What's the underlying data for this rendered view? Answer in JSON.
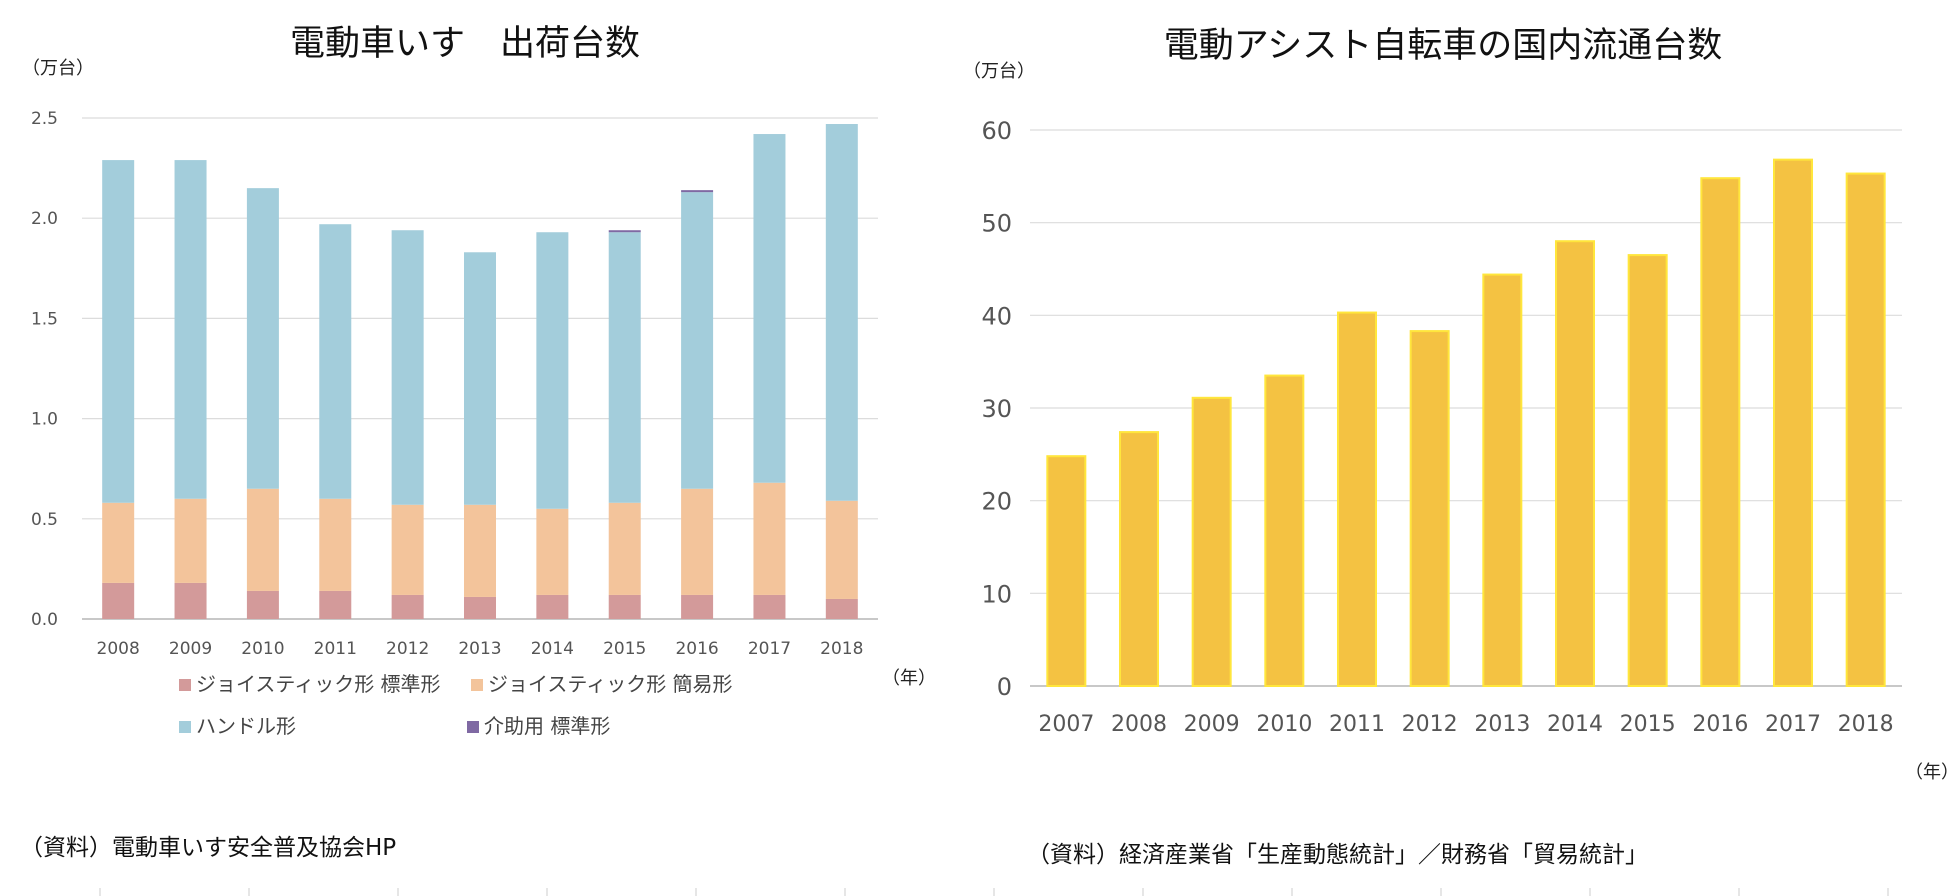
{
  "chart_data": [
    {
      "type": "bar",
      "stacked": true,
      "title": "電動車いす　出荷台数",
      "unit_label": "（万台）",
      "x_unit_label": "（年）",
      "categories": [
        "2008",
        "2009",
        "2010",
        "2011",
        "2012",
        "2013",
        "2014",
        "2015",
        "2016",
        "2017",
        "2018"
      ],
      "y_ticks": [
        "0.0",
        "0.5",
        "1.0",
        "1.5",
        "2.0",
        "2.5"
      ],
      "ylim": [
        0,
        2.5
      ],
      "grid": true,
      "legend_position": "bottom",
      "series": [
        {
          "name": "ジョイスティック形 標準形",
          "color": "#d39a9a",
          "values": [
            0.18,
            0.18,
            0.14,
            0.14,
            0.12,
            0.11,
            0.12,
            0.12,
            0.12,
            0.12,
            0.1
          ]
        },
        {
          "name": "ジョイスティック形 簡易形",
          "color": "#f3c49b",
          "values": [
            0.4,
            0.42,
            0.51,
            0.46,
            0.45,
            0.46,
            0.43,
            0.46,
            0.53,
            0.56,
            0.49
          ]
        },
        {
          "name": "ハンドル形",
          "color": "#a3cddb",
          "values": [
            1.71,
            1.69,
            1.5,
            1.37,
            1.37,
            1.26,
            1.38,
            1.35,
            1.48,
            1.74,
            1.88
          ]
        },
        {
          "name": "介助用 標準形",
          "color": "#7f69a3",
          "values": [
            0.0,
            0.0,
            0.0,
            0.0,
            0.0,
            0.0,
            0.0,
            0.01,
            0.01,
            0.0,
            0.0
          ]
        }
      ],
      "source": "（資料）電動車いす安全普及協会HP"
    },
    {
      "type": "bar",
      "title": "電動アシスト自転車の国内流通台数",
      "unit_label": "（万台）",
      "x_unit_label": "（年）",
      "categories": [
        "2007",
        "2008",
        "2009",
        "2010",
        "2011",
        "2012",
        "2013",
        "2014",
        "2015",
        "2016",
        "2017",
        "2018"
      ],
      "y_ticks": [
        "0",
        "10",
        "20",
        "30",
        "40",
        "50",
        "60"
      ],
      "ylim": [
        0,
        60
      ],
      "grid": true,
      "series": [
        {
          "color": "#f4c242",
          "edge_color": "#ffe63c",
          "values": [
            24.8,
            27.4,
            31.1,
            33.5,
            40.3,
            38.3,
            44.4,
            48.0,
            46.5,
            54.8,
            56.8,
            55.3
          ]
        }
      ],
      "source": "（資料）経済産業省「生産動態統計」／財務省「貿易統計」"
    }
  ]
}
